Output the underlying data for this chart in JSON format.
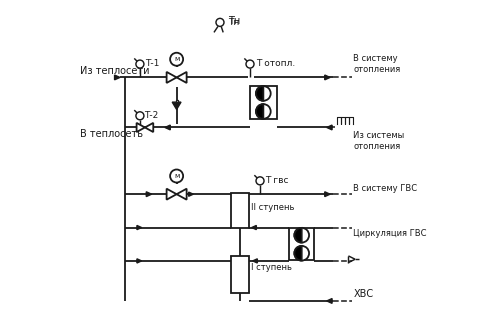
{
  "bg_color": "#ffffff",
  "line_color": "#1a1a1a",
  "labels": {
    "iz_teplosti": "Из теплосети",
    "v_teplost": "В теплосеть",
    "t1": "Т-1",
    "t2": "Т-2",
    "tn": "Тн",
    "t_otopl": "Т отопл.",
    "v_sistemu_ot": "В систему\nотопления",
    "iz_sistemy_ot": "Из системы\nотопления",
    "t_gvs": "Т гвс",
    "v_sistemu_gvs": "В систему ГВС",
    "cirkulyacia": "Циркуляция ГВС",
    "hvs": "ХВС",
    "ii_stupen": "II ступень",
    "i_stupen": "I ступень"
  }
}
